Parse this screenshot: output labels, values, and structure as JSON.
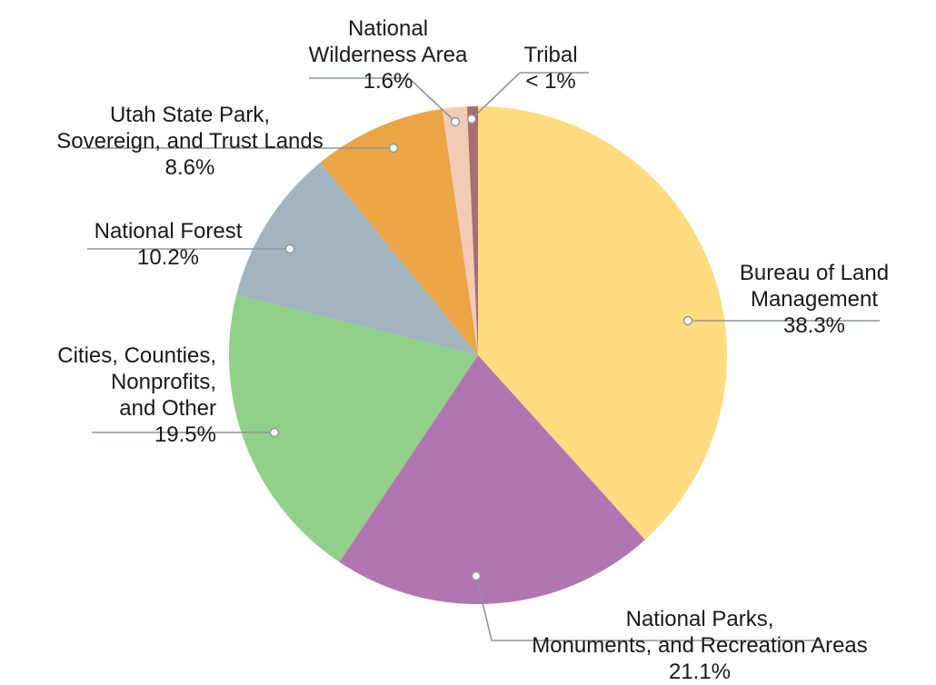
{
  "chart_data": {
    "type": "pie",
    "title": "",
    "start_angle_deg": 0,
    "direction": "clockwise",
    "center": [
      526,
      391
    ],
    "radius": 274,
    "slices": [
      {
        "label": "Bureau of Land Management",
        "lines": [
          "Bureau of Land",
          "Management"
        ],
        "value": 38.3,
        "display": "38.3%",
        "color": "#FEDC7F"
      },
      {
        "label": "National Parks, Monuments, and Recreation Areas",
        "lines": [
          "National Parks,",
          "Monuments, and Recreation Areas"
        ],
        "value": 21.1,
        "display": "21.1%",
        "color": "#B176B2"
      },
      {
        "label": "Cities, Counties, Nonprofits, and Other",
        "lines": [
          "Cities, Counties,",
          "Nonprofits,",
          "and Other"
        ],
        "value": 19.5,
        "display": "19.5%",
        "color": "#90D088"
      },
      {
        "label": "National Forest",
        "lines": [
          "National Forest"
        ],
        "value": 10.2,
        "display": "10.2%",
        "color": "#A2B4BF"
      },
      {
        "label": "Utah State Park, Sovereign, and Trust Lands",
        "lines": [
          "Utah State Park,",
          "Sovereign, and Trust Lands"
        ],
        "value": 8.6,
        "display": "8.6%",
        "color": "#EBA545"
      },
      {
        "label": "National Wilderness Area",
        "lines": [
          "National",
          "Wilderness Area"
        ],
        "value": 1.6,
        "display": "1.6%",
        "color": "#F2CBB6"
      },
      {
        "label": "Tribal",
        "lines": [
          "Tribal"
        ],
        "value": 0.7,
        "display": "< 1%",
        "color": "#A66E6E"
      }
    ],
    "leader_line_color": "#8E959C",
    "legend": "none (direct labels with leader lines)"
  }
}
